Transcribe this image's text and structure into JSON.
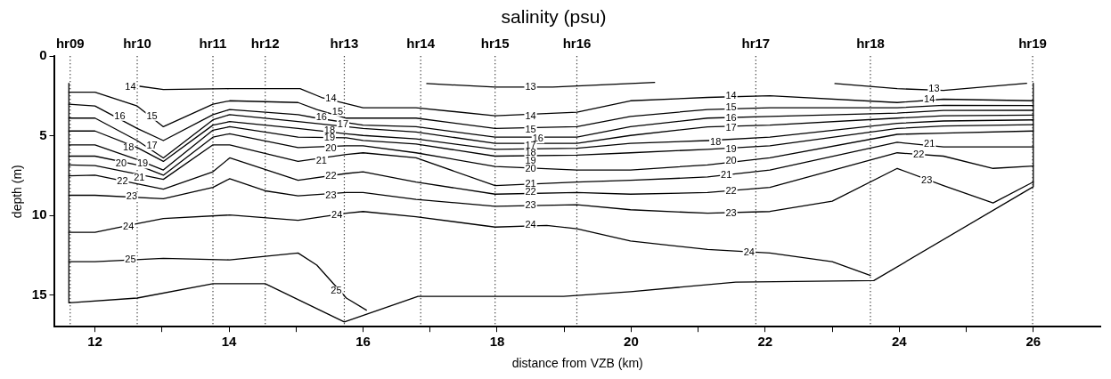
{
  "chart_data": {
    "type": "line",
    "title": "salinity (psu)",
    "xlabel": "distance from VZB (km)",
    "ylabel": "depth (m)",
    "xlim": [
      11.4,
      27
    ],
    "xticks": [
      12,
      {
        "value": 13,
        "label": null
      },
      14,
      {
        "value": 15,
        "label": null
      },
      16,
      {
        "value": 17,
        "label": null
      },
      18,
      {
        "value": 19,
        "label": null
      },
      20,
      {
        "value": 21,
        "label": null
      },
      22,
      {
        "value": 23,
        "label": null
      },
      24,
      {
        "value": 25,
        "label": null
      },
      26
    ],
    "ylim": [
      17,
      0
    ],
    "yticks": [
      0,
      5,
      10,
      15
    ],
    "grid": false,
    "legend": false,
    "marker": "none",
    "line_style": "solid",
    "ref_lines": [
      {
        "axis": "x",
        "value": 11.63,
        "label": "hr09",
        "line_style": "dotted"
      },
      {
        "axis": "x",
        "value": 12.63,
        "label": "hr10",
        "line_style": "dotted"
      },
      {
        "axis": "x",
        "value": 13.76,
        "label": "hr11",
        "line_style": "dotted"
      },
      {
        "axis": "x",
        "value": 14.54,
        "label": "hr12",
        "line_style": "dotted"
      },
      {
        "axis": "x",
        "value": 15.72,
        "label": "hr13",
        "line_style": "dotted"
      },
      {
        "axis": "x",
        "value": 16.86,
        "label": "hr14",
        "line_style": "dotted"
      },
      {
        "axis": "x",
        "value": 17.97,
        "label": "hr15",
        "line_style": "dotted"
      },
      {
        "axis": "x",
        "value": 19.19,
        "label": "hr16",
        "line_style": "dotted"
      },
      {
        "axis": "x",
        "value": 21.86,
        "label": "hr17",
        "line_style": "dotted"
      },
      {
        "axis": "x",
        "value": 23.57,
        "label": "hr18",
        "line_style": "dotted"
      },
      {
        "axis": "x",
        "value": 25.99,
        "label": "hr19",
        "line_style": "dotted"
      }
    ],
    "series": [
      {
        "color": "#000000",
        "x": [
          11.61,
          11.61,
          12.63,
          13.76,
          14.54,
          15.72,
          16.82,
          18.99,
          19.99,
          21.56,
          23.62,
          26.0,
          26.0
        ],
        "values": [
          1.7,
          15.5,
          15.2,
          14.3,
          14.3,
          16.7,
          15.1,
          15.1,
          14.8,
          14.2,
          14.1,
          8.2,
          1.7
        ]
      },
      {
        "color": "#000000",
        "x": [
          16.95,
          17.97,
          18.83,
          20.35
        ],
        "values": [
          1.72,
          1.94,
          1.94,
          1.65
        ]
      },
      {
        "color": "#000000",
        "x": [
          23.04,
          23.97,
          24.66,
          25.9
        ],
        "values": [
          1.72,
          2.04,
          2.15,
          1.7
        ]
      },
      {
        "color": "#000000",
        "x": [
          12.67,
          13.02,
          14.01,
          15.06,
          15.38,
          16.0,
          16.79,
          17.97,
          19.19,
          19.99,
          21.14,
          22.07,
          23.97,
          24.66,
          26.0
        ],
        "values": [
          1.89,
          2.09,
          2.04,
          2.04,
          2.59,
          3.24,
          3.24,
          3.74,
          3.52,
          2.8,
          2.59,
          2.48,
          2.91,
          2.7,
          2.8
        ]
      },
      {
        "color": "#000000",
        "x": [
          11.61,
          12.0,
          12.63,
          13.02,
          13.76,
          14.01,
          15.03,
          15.31,
          15.75,
          16.0,
          16.79,
          17.97,
          19.19,
          19.99,
          21.14,
          22.07,
          23.97,
          24.66,
          26.0
        ],
        "values": [
          2.26,
          2.26,
          3.13,
          4.43,
          3.02,
          2.8,
          2.91,
          3.35,
          3.89,
          3.89,
          3.89,
          4.54,
          4.43,
          3.78,
          3.35,
          3.24,
          3.24,
          3.09,
          3.1
        ]
      },
      {
        "color": "#000000",
        "x": [
          11.61,
          12.0,
          12.63,
          13.02,
          13.76,
          14.01,
          15.03,
          15.31,
          16.0,
          16.79,
          17.97,
          19.19,
          19.99,
          21.14,
          22.07,
          23.97,
          24.66,
          26.0
        ],
        "values": [
          3.02,
          3.13,
          4.54,
          5.3,
          3.67,
          3.35,
          3.67,
          3.89,
          4.33,
          4.43,
          5.09,
          5.09,
          4.43,
          3.89,
          3.78,
          3.57,
          3.41,
          3.4
        ]
      },
      {
        "color": "#000000",
        "x": [
          11.61,
          12.0,
          12.63,
          13.02,
          13.76,
          14.01,
          15.03,
          16.0,
          16.79,
          17.97,
          19.19,
          19.99,
          21.14,
          22.07,
          23.97,
          24.66,
          26.0
        ],
        "values": [
          3.89,
          3.89,
          5.3,
          6.39,
          4.0,
          3.67,
          4.11,
          4.54,
          4.76,
          5.48,
          5.48,
          4.98,
          4.44,
          4.33,
          3.89,
          3.74,
          3.7
        ]
      },
      {
        "color": "#000000",
        "x": [
          11.61,
          12.0,
          12.63,
          13.02,
          13.76,
          14.01,
          15.03,
          15.75,
          16.0,
          16.79,
          17.97,
          19.19,
          19.99,
          21.14,
          22.07,
          23.97,
          24.66,
          26.0
        ],
        "values": [
          4.7,
          4.7,
          5.74,
          6.61,
          4.33,
          4.11,
          4.54,
          4.87,
          4.98,
          5.2,
          5.85,
          5.78,
          5.48,
          5.3,
          5.09,
          4.22,
          4.07,
          4.0
        ]
      },
      {
        "color": "#000000",
        "x": [
          11.61,
          12.0,
          12.63,
          13.02,
          13.76,
          14.01,
          15.03,
          15.75,
          16.0,
          16.79,
          17.97,
          19.19,
          19.99,
          21.14,
          22.07,
          23.97,
          24.66,
          26.0
        ],
        "values": [
          5.57,
          5.57,
          6.5,
          7.15,
          4.65,
          4.43,
          5.09,
          5.13,
          5.3,
          5.52,
          6.28,
          6.22,
          6.07,
          5.85,
          5.63,
          4.54,
          4.39,
          4.3
        ]
      },
      {
        "color": "#000000",
        "x": [
          11.61,
          12.0,
          12.63,
          13.02,
          13.76,
          14.01,
          15.03,
          15.75,
          16.0,
          16.79,
          17.97,
          19.19,
          19.99,
          21.14,
          22.07,
          23.97,
          24.66,
          26.0
        ],
        "values": [
          6.28,
          6.28,
          6.83,
          7.48,
          5.09,
          4.87,
          5.74,
          5.63,
          5.63,
          6.07,
          6.93,
          7.15,
          7.15,
          6.83,
          6.39,
          4.91,
          4.83,
          4.7
        ]
      },
      {
        "color": "#000000",
        "x": [
          11.61,
          12.0,
          13.02,
          13.76,
          14.01,
          15.03,
          15.75,
          16.0,
          16.79,
          17.97,
          19.19,
          19.99,
          21.14,
          22.07,
          23.97,
          24.66,
          26.0
        ],
        "values": [
          6.83,
          6.87,
          7.74,
          5.57,
          5.57,
          6.61,
          6.17,
          6.07,
          6.39,
          8.13,
          7.91,
          7.8,
          7.59,
          7.15,
          5.41,
          5.7,
          5.7
        ]
      },
      {
        "color": "#000000",
        "x": [
          11.61,
          12.0,
          12.63,
          13.02,
          13.76,
          14.01,
          15.03,
          15.75,
          16.0,
          16.79,
          17.97,
          19.19,
          19.99,
          21.14,
          22.07,
          23.97,
          24.66,
          25.4,
          26.0
        ],
        "values": [
          7.52,
          7.48,
          8.02,
          8.35,
          7.26,
          6.39,
          7.8,
          7.37,
          7.26,
          7.91,
          8.67,
          8.57,
          8.67,
          8.57,
          8.24,
          6.07,
          6.28,
          7.05,
          6.9
        ]
      },
      {
        "color": "#000000",
        "x": [
          11.61,
          12.0,
          13.02,
          13.76,
          14.01,
          14.54,
          15.03,
          15.75,
          16.0,
          16.79,
          17.97,
          19.19,
          19.99,
          21.14,
          22.07,
          23.0,
          23.97,
          24.66,
          25.4,
          26.0
        ],
        "values": [
          8.74,
          8.74,
          8.96,
          8.24,
          7.7,
          8.46,
          8.78,
          8.57,
          8.57,
          9.0,
          9.43,
          9.33,
          9.65,
          9.87,
          9.76,
          9.11,
          7.05,
          8.13,
          9.22,
          7.9
        ]
      },
      {
        "color": "#000000",
        "x": [
          11.61,
          12.0,
          12.63,
          13.02,
          14.01,
          15.03,
          15.75,
          16.0,
          16.79,
          17.97,
          18.74,
          19.19,
          19.99,
          21.14,
          22.07,
          23.0,
          23.57
        ],
        "values": [
          11.07,
          11.07,
          10.52,
          10.2,
          9.98,
          10.31,
          9.87,
          9.76,
          10.09,
          10.74,
          10.63,
          10.85,
          11.61,
          12.15,
          12.37,
          12.91,
          13.78
        ]
      },
      {
        "color": "#000000",
        "x": [
          11.61,
          12.0,
          13.02,
          14.01,
          15.03,
          15.31,
          15.75,
          16.05
        ],
        "values": [
          12.91,
          12.91,
          12.7,
          12.8,
          12.37,
          13.13,
          15.2,
          15.96
        ]
      }
    ],
    "annotations": [
      {
        "text": "14",
        "x": 12.53,
        "y": 1.94
      },
      {
        "text": "15",
        "x": 12.85,
        "y": 3.78
      },
      {
        "text": "16",
        "x": 12.37,
        "y": 3.78
      },
      {
        "text": "17",
        "x": 12.85,
        "y": 5.63
      },
      {
        "text": "18",
        "x": 12.5,
        "y": 5.74
      },
      {
        "text": "19",
        "x": 12.71,
        "y": 6.78
      },
      {
        "text": "20",
        "x": 12.39,
        "y": 6.78
      },
      {
        "text": "21",
        "x": 12.66,
        "y": 7.65
      },
      {
        "text": "22",
        "x": 12.41,
        "y": 7.87
      },
      {
        "text": "23",
        "x": 12.55,
        "y": 8.85
      },
      {
        "text": "24",
        "x": 12.5,
        "y": 10.74
      },
      {
        "text": "25",
        "x": 12.53,
        "y": 12.8
      },
      {
        "text": "14",
        "x": 15.52,
        "y": 2.65
      },
      {
        "text": "15",
        "x": 15.62,
        "y": 3.5
      },
      {
        "text": "16",
        "x": 15.38,
        "y": 3.83
      },
      {
        "text": "17",
        "x": 15.7,
        "y": 4.3
      },
      {
        "text": "18",
        "x": 15.5,
        "y": 4.7
      },
      {
        "text": "19",
        "x": 15.5,
        "y": 5.15
      },
      {
        "text": "20",
        "x": 15.52,
        "y": 5.78
      },
      {
        "text": "21",
        "x": 15.38,
        "y": 6.57
      },
      {
        "text": "22",
        "x": 15.52,
        "y": 7.52
      },
      {
        "text": "23",
        "x": 15.52,
        "y": 8.74
      },
      {
        "text": "24",
        "x": 15.61,
        "y": 9.98
      },
      {
        "text": "25",
        "x": 15.6,
        "y": 14.76
      },
      {
        "text": "13",
        "x": 18.5,
        "y": 1.94
      },
      {
        "text": "14",
        "x": 18.5,
        "y": 3.78
      },
      {
        "text": "15",
        "x": 18.5,
        "y": 4.61
      },
      {
        "text": "16",
        "x": 18.61,
        "y": 5.2
      },
      {
        "text": "17",
        "x": 18.5,
        "y": 5.63
      },
      {
        "text": "18",
        "x": 18.5,
        "y": 6.1
      },
      {
        "text": "19",
        "x": 18.5,
        "y": 6.6
      },
      {
        "text": "20",
        "x": 18.5,
        "y": 7.1
      },
      {
        "text": "21",
        "x": 18.5,
        "y": 8.02
      },
      {
        "text": "22",
        "x": 18.5,
        "y": 8.57
      },
      {
        "text": "23",
        "x": 18.5,
        "y": 9.37
      },
      {
        "text": "24",
        "x": 18.5,
        "y": 10.63
      },
      {
        "text": "14",
        "x": 21.49,
        "y": 2.48
      },
      {
        "text": "15",
        "x": 21.49,
        "y": 3.24
      },
      {
        "text": "16",
        "x": 21.49,
        "y": 3.89
      },
      {
        "text": "17",
        "x": 21.49,
        "y": 4.54
      },
      {
        "text": "18",
        "x": 21.26,
        "y": 5.41
      },
      {
        "text": "19",
        "x": 21.49,
        "y": 5.85
      },
      {
        "text": "20",
        "x": 21.49,
        "y": 6.61
      },
      {
        "text": "21",
        "x": 21.42,
        "y": 7.48
      },
      {
        "text": "22",
        "x": 21.49,
        "y": 8.46
      },
      {
        "text": "23",
        "x": 21.49,
        "y": 9.87
      },
      {
        "text": "24",
        "x": 21.76,
        "y": 12.37
      },
      {
        "text": "13",
        "x": 24.52,
        "y": 2.05
      },
      {
        "text": "14",
        "x": 24.45,
        "y": 2.75
      },
      {
        "text": "21",
        "x": 24.45,
        "y": 5.5
      },
      {
        "text": "22",
        "x": 24.29,
        "y": 6.18
      },
      {
        "text": "23",
        "x": 24.41,
        "y": 7.8
      }
    ]
  }
}
